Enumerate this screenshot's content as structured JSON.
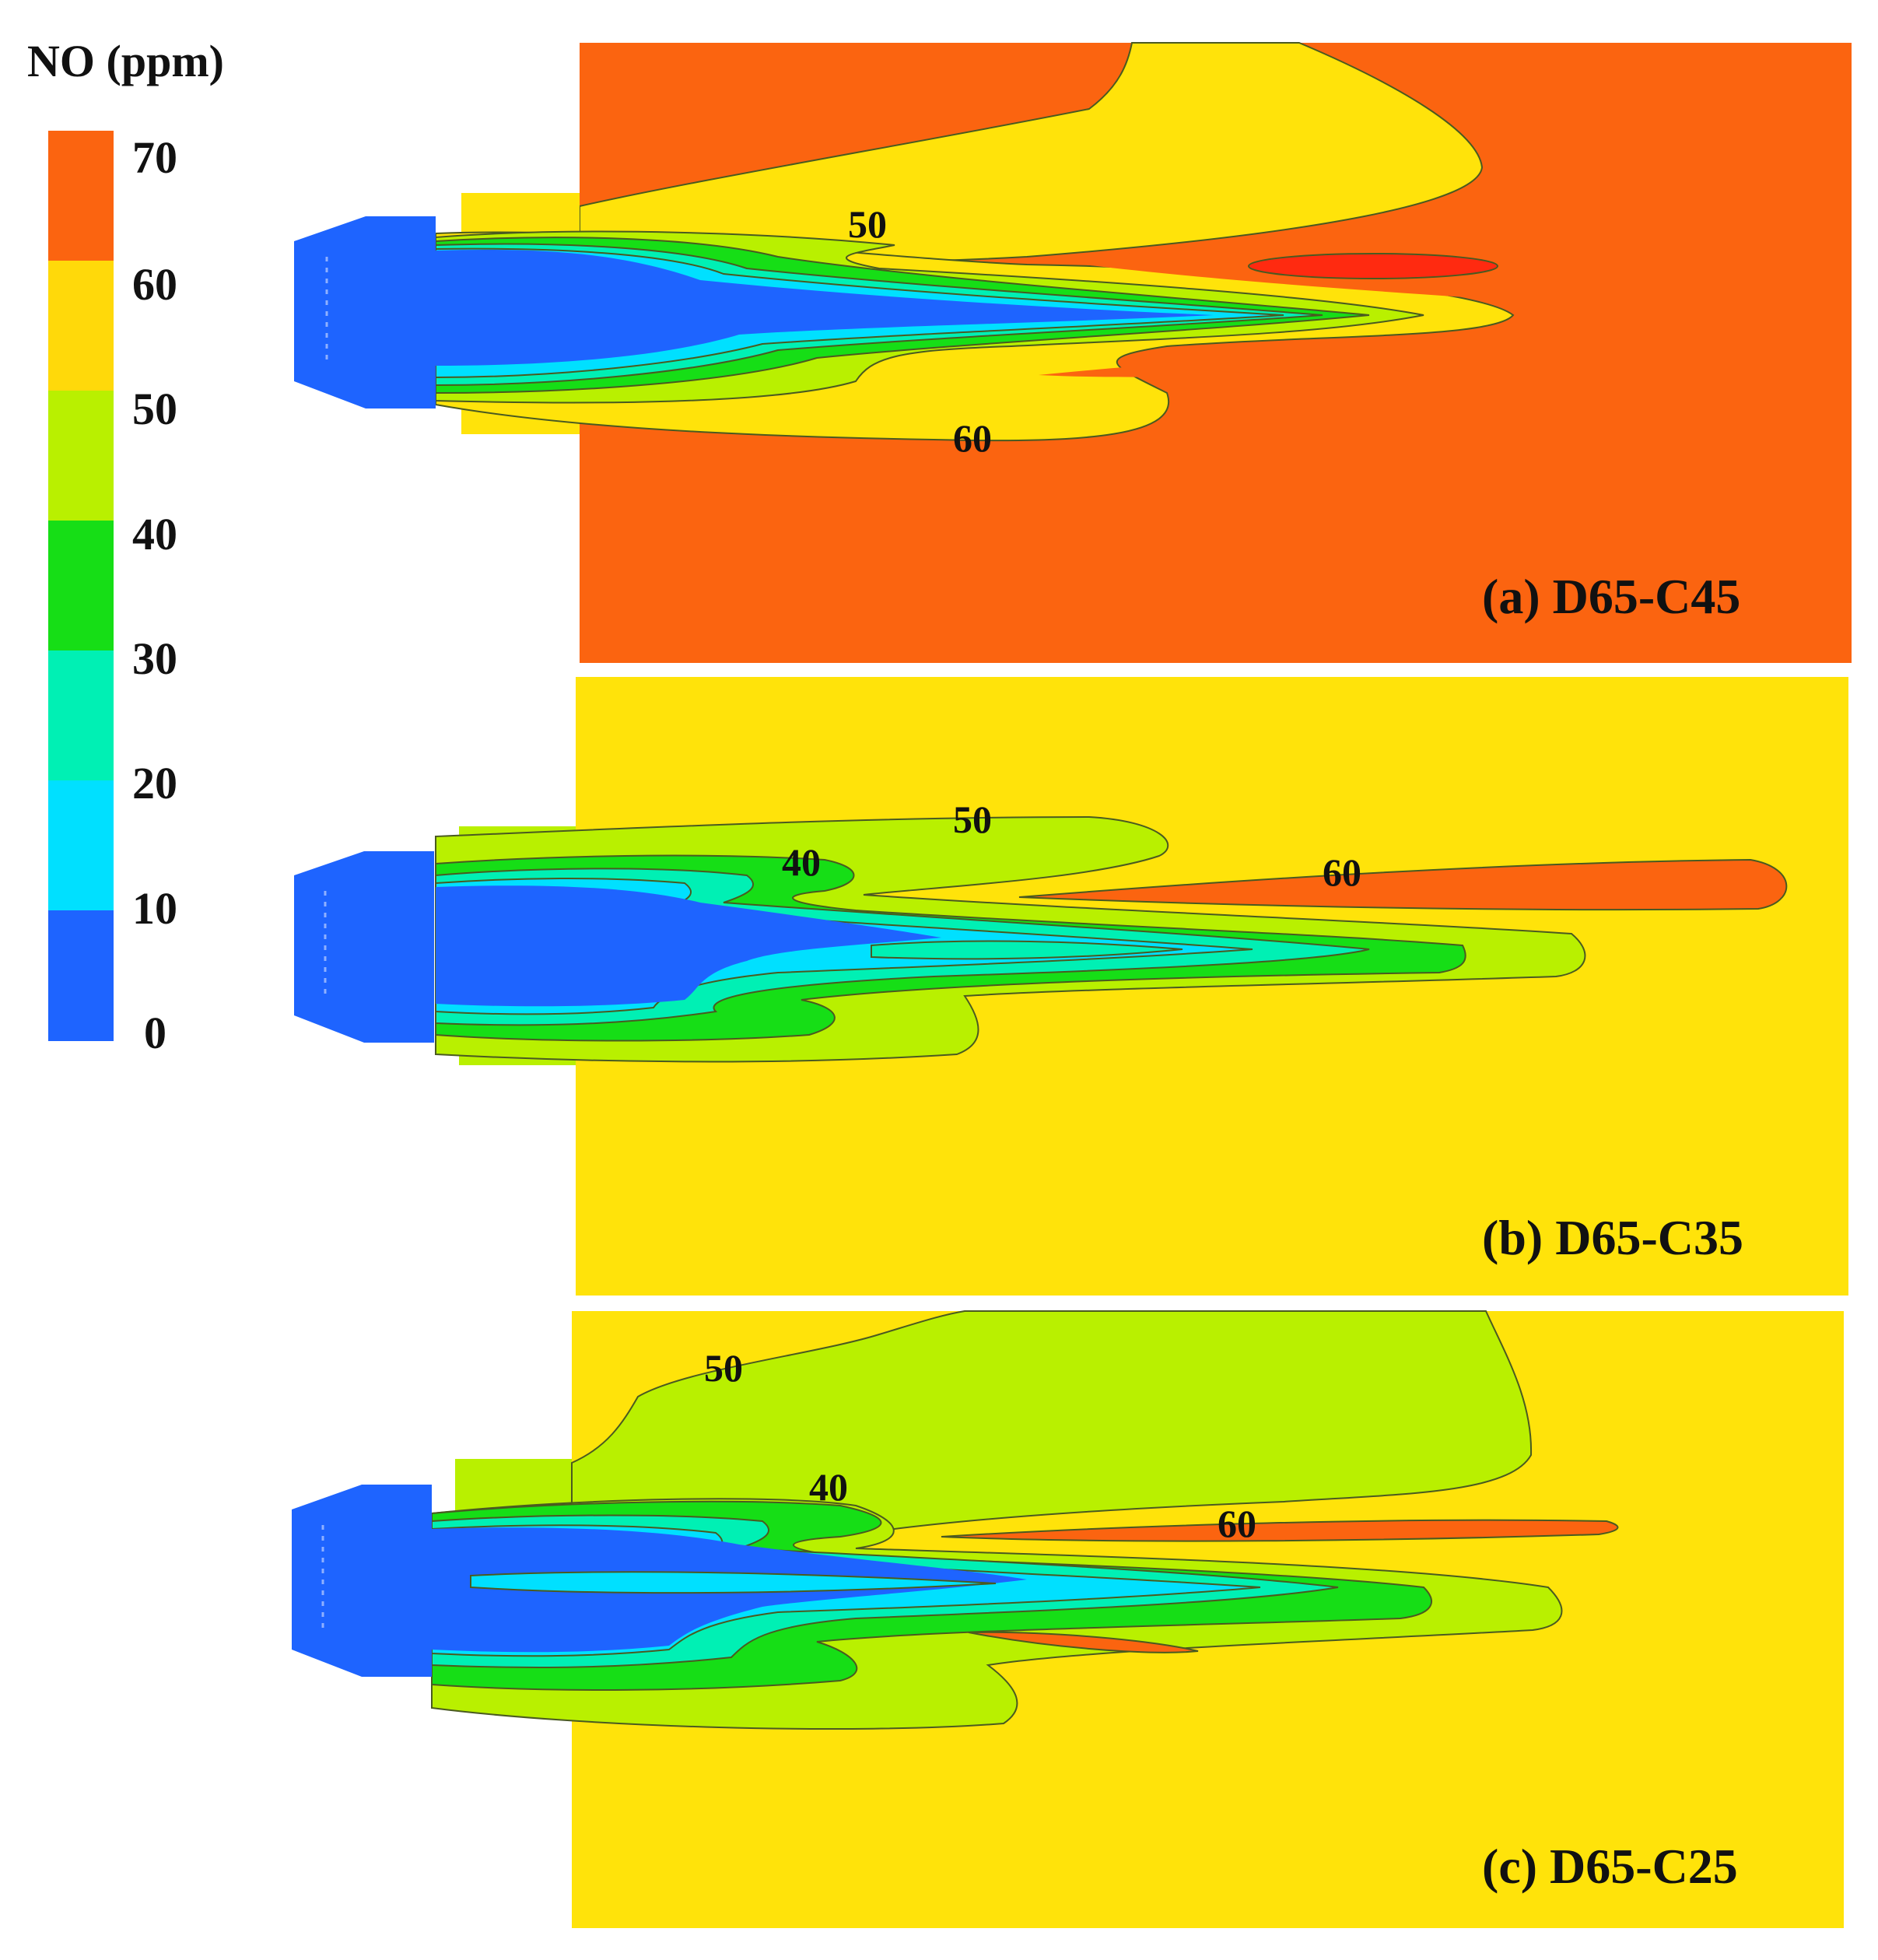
{
  "figure": {
    "colorbar": {
      "title": "NO (ppm)",
      "ticks": [
        "70",
        "60",
        "50",
        "40",
        "30",
        "20",
        "10",
        "0"
      ],
      "band_colors": [
        "#fb6410",
        "#ffd90a",
        "#b9f000",
        "#16de16",
        "#00f0b4",
        "#00e0ff",
        "#1e64ff"
      ]
    },
    "colors": {
      "band_0_10": "#1e64ff",
      "band_10_20": "#00e0ff",
      "band_20_30": "#00f0b4",
      "band_30_40": "#16de16",
      "band_40_50": "#b9f000",
      "band_50_60": "#ffe30a",
      "band_60_70": "#fb6410",
      "peak": "#ff2a10"
    },
    "panels": [
      {
        "label": "(a) D65-C45",
        "contour_labels": [
          "50",
          "60"
        ]
      },
      {
        "label": "(b) D65-C35",
        "contour_labels": [
          "50",
          "40",
          "60"
        ]
      },
      {
        "label": "(c) D65-C25",
        "contour_labels": [
          "50",
          "40",
          "60"
        ]
      }
    ]
  }
}
